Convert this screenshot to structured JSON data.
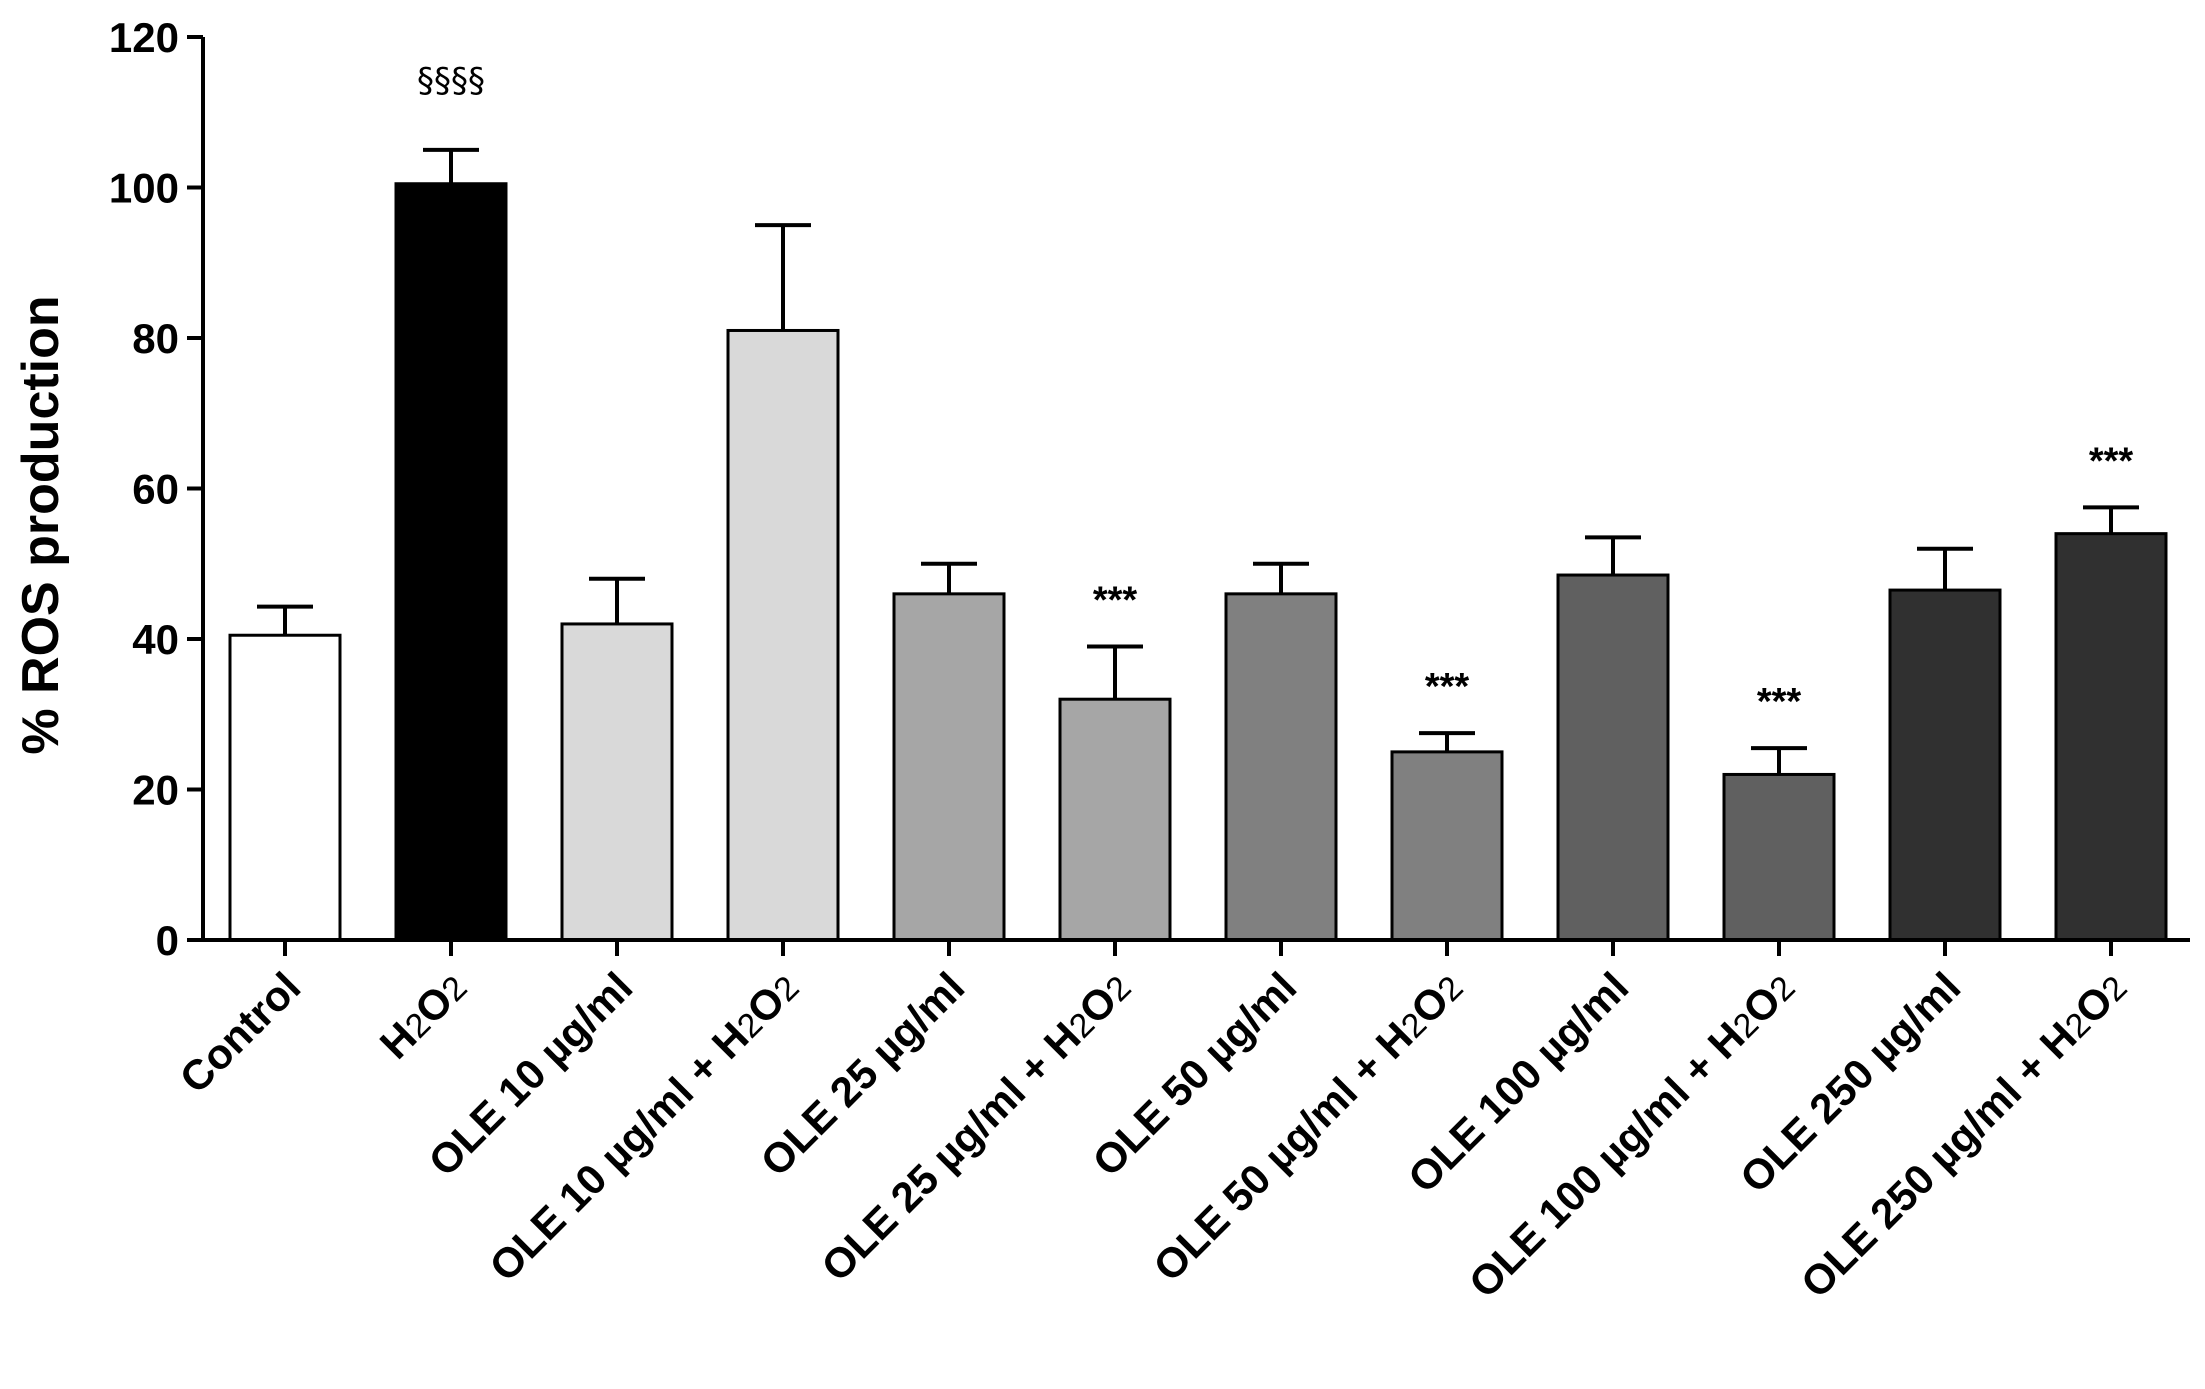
{
  "chart_data": {
    "type": "bar",
    "title": "",
    "xlabel": "",
    "ylabel": "% ROS production",
    "ylim": [
      0,
      120
    ],
    "yticks": [
      0,
      20,
      40,
      60,
      80,
      100,
      120
    ],
    "grid": false,
    "legend": "none",
    "bars": [
      {
        "label": "Control",
        "value": 40.5,
        "error": 3.8,
        "color": "#ffffff",
        "annotation": ""
      },
      {
        "label": "H2O2",
        "value": 100.5,
        "error": 4.5,
        "color": "#000000",
        "annotation": "§§§§"
      },
      {
        "label": "OLE 10 µg/ml",
        "value": 42,
        "error": 6,
        "color": "#d9d9d9",
        "annotation": ""
      },
      {
        "label": "OLE 10 µg/ml + H2O2",
        "value": 81,
        "error": 14,
        "color": "#d9d9d9",
        "annotation": ""
      },
      {
        "label": "OLE 25 µg/ml",
        "value": 46,
        "error": 4,
        "color": "#a6a6a6",
        "annotation": ""
      },
      {
        "label": "OLE 25 µg/ml + H2O2",
        "value": 32,
        "error": 7,
        "color": "#a6a6a6",
        "annotation": "***"
      },
      {
        "label": "OLE 50 µg/ml",
        "value": 46,
        "error": 4,
        "color": "#808080",
        "annotation": ""
      },
      {
        "label": "OLE 50 µg/ml + H2O2",
        "value": 25,
        "error": 2.5,
        "color": "#808080",
        "annotation": "***"
      },
      {
        "label": "OLE 100 µg/ml",
        "value": 48.5,
        "error": 5,
        "color": "#606060",
        "annotation": ""
      },
      {
        "label": "OLE 100 µg/ml + H2O2",
        "value": 22,
        "error": 3.5,
        "color": "#606060",
        "annotation": "***"
      },
      {
        "label": "OLE 250 µg/ml",
        "value": 46.5,
        "error": 5.5,
        "color": "#303030",
        "annotation": ""
      },
      {
        "label": "OLE 250 µg/ml + H2O2",
        "value": 54,
        "error": 3.5,
        "color": "#303030",
        "annotation": "***"
      }
    ]
  }
}
